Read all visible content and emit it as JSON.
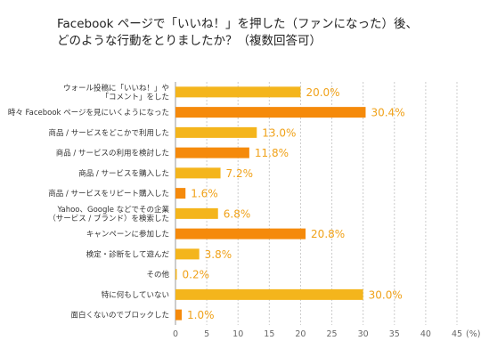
{
  "chart_data": {
    "type": "bar",
    "orientation": "horizontal",
    "title": [
      "Facebook ページで「いいね！」を押した（ファンになった）後、",
      "どのような行動をとりましたか？（複数回答可）"
    ],
    "categories": [
      [
        "ウォール投稿に「いいね！」や",
        "「コメント」をした"
      ],
      [
        "時々 Facebook ページを見にいくようになった"
      ],
      [
        "商品 / サービスをどこかで利用した"
      ],
      [
        "商品 / サービスの利用を検討した"
      ],
      [
        "商品 / サービスを購入した"
      ],
      [
        "商品 / サービスをリピート購入した"
      ],
      [
        "Yahoo、Google などでその企業",
        "（サービス / ブランド）を検索した"
      ],
      [
        "キャンペーンに参加した"
      ],
      [
        "検定・診断をして遊んだ"
      ],
      [
        "その他"
      ],
      [
        "特に何もしていない"
      ],
      [
        "面白くないのでブロックした"
      ]
    ],
    "values": [
      20.0,
      30.4,
      13.0,
      11.8,
      7.2,
      1.6,
      6.8,
      20.8,
      3.8,
      0.2,
      30.0,
      1.0
    ],
    "value_labels": [
      "20.0%",
      "30.4%",
      "13.0%",
      "11.8%",
      "7.2%",
      "1.6%",
      "6.8%",
      "20.8%",
      "3.8%",
      "0.2%",
      "30.0%",
      "1.0%"
    ],
    "highlight": [
      false,
      true,
      false,
      true,
      false,
      true,
      false,
      true,
      false,
      false,
      false,
      true
    ],
    "colors": {
      "bar": "#f4b51c",
      "bar_highlight": "#f58a0b",
      "value_label": "#f0a21a",
      "grid": "#cccccc"
    },
    "xlim": [
      0,
      45
    ],
    "xticks": [
      "0",
      "5",
      "10",
      "15",
      "20",
      "25",
      "30",
      "35",
      "40",
      "45"
    ],
    "xunit": "(%)",
    "grid": "vertical-dashed"
  }
}
